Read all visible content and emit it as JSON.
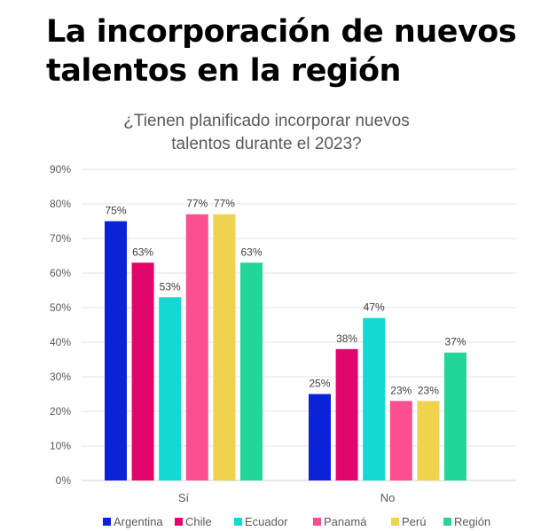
{
  "headline": "La incorporación de nuevos talentos en la región",
  "chart_data": {
    "type": "bar",
    "title_lines": [
      "¿Tienen planificado incorporar nuevos",
      "talentos durante el 2023?"
    ],
    "categories": [
      "Sí",
      "No"
    ],
    "series": [
      {
        "name": "Argentina",
        "values": [
          75,
          25
        ],
        "color": "#0a22d8"
      },
      {
        "name": "Chile",
        "values": [
          63,
          38
        ],
        "color": "#e0066b"
      },
      {
        "name": "Ecuador",
        "values": [
          53,
          47
        ],
        "color": "#14d9d3"
      },
      {
        "name": "Panamá",
        "values": [
          77,
          23
        ],
        "color": "#fb4f8f"
      },
      {
        "name": "Perú",
        "values": [
          77,
          23
        ],
        "color": "#efd24e"
      },
      {
        "name": "Región",
        "values": [
          63,
          37
        ],
        "color": "#22d699"
      }
    ],
    "ylim": [
      0,
      90
    ],
    "yticks": [
      "0%",
      "10%",
      "20%",
      "30%",
      "40%",
      "50%",
      "60%",
      "70%",
      "80%",
      "90%"
    ],
    "value_suffix": "%",
    "grid": true,
    "legend": "bottom"
  }
}
